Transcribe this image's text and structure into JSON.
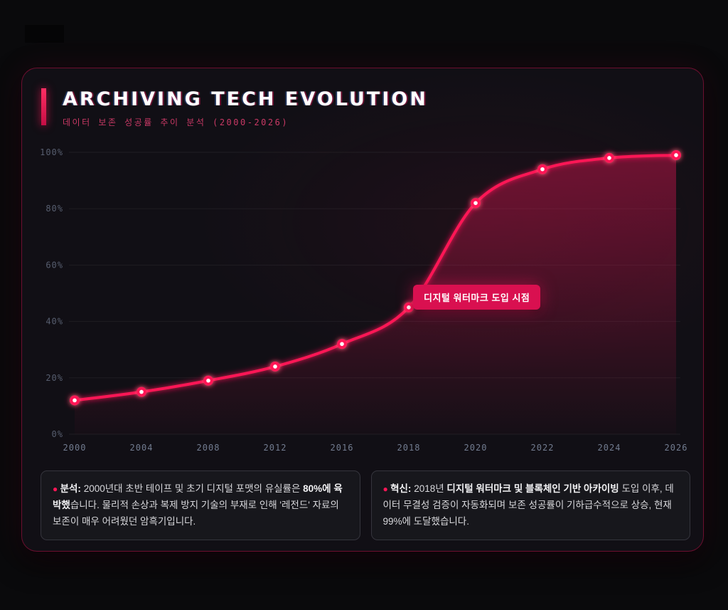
{
  "header": {
    "title": "ARCHIVING TECH EVOLUTION",
    "subtitle": "데이터 보존 성공률 추이 분석 (2000-2026)"
  },
  "chart_data": {
    "type": "line",
    "title": "ARCHIVING TECH EVOLUTION",
    "categories": [
      "2000",
      "2004",
      "2008",
      "2012",
      "2016",
      "2018",
      "2020",
      "2022",
      "2024",
      "2026"
    ],
    "values": [
      12,
      15,
      19,
      24,
      32,
      45,
      82,
      94,
      98,
      99
    ],
    "y_ticks": [
      "0%",
      "20%",
      "40%",
      "60%",
      "80%",
      "100%"
    ],
    "y_tick_values": [
      0,
      20,
      40,
      60,
      80,
      100
    ],
    "ylim": [
      0,
      100
    ],
    "grid": "horizontal",
    "legend": "none",
    "xlabel": "",
    "ylabel": "",
    "annotation": {
      "label": "디지털 워터마크 도입 시점",
      "category": "2018",
      "value": 45
    },
    "colors": {
      "line": "#ff1757",
      "point_core": "#ffffff",
      "area_top": "rgba(255,23,93,0.38)",
      "area_bottom": "rgba(255,23,93,0.02)",
      "grid": "rgba(255,255,255,0.06)",
      "y_tick_text": "#575e6f",
      "x_tick_text": "#727c90",
      "annotation_bg": "#d91050",
      "accent": "#ff1757"
    }
  },
  "notes": [
    {
      "bullet": "●",
      "segments": [
        {
          "text": "분석:",
          "bold": true,
          "accent": true
        },
        {
          "text": " 2000년대 초반 테이프 및 초기 디지털 포맷의 유실률은 ",
          "bold": false
        },
        {
          "text": "80%에 육박했",
          "bold": true
        },
        {
          "text": "습니다. 물리적 손상과 복제 방지 기술의 부재로 인해 '레전드' 자료의 보존이 매우 어려웠던 암흑기입니다.",
          "bold": false
        }
      ]
    },
    {
      "bullet": "●",
      "segments": [
        {
          "text": "혁신:",
          "bold": true,
          "accent": true
        },
        {
          "text": " 2018년 ",
          "bold": false
        },
        {
          "text": "디지털 워터마크 및 블록체인 기반 아카이빙",
          "bold": true
        },
        {
          "text": " 도입 이후, 데이터 무결성 검증이 자동화되며 보존 성공률이 기하급수적으로 상승, 현재 99%에 도달했습니다.",
          "bold": false
        }
      ]
    }
  ]
}
